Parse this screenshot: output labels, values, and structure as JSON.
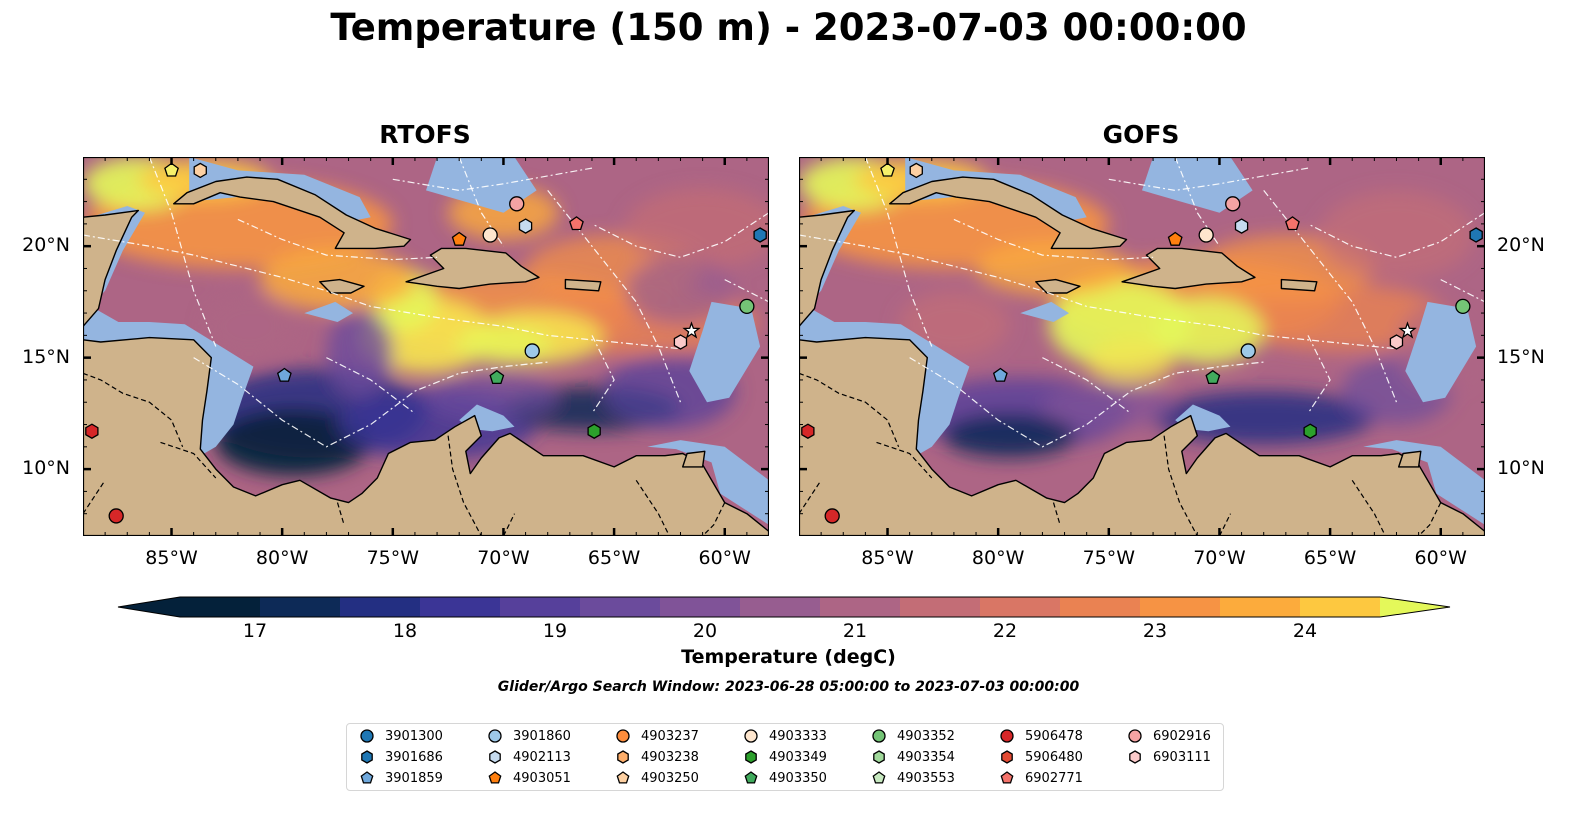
{
  "title": "Temperature (150 m) - 2023-07-03 00:00:00",
  "panels": [
    {
      "title": "RTOFS",
      "name": "rtofs"
    },
    {
      "title": "GOFS",
      "name": "gofs"
    }
  ],
  "map": {
    "lon_range": [
      -89.0,
      -58.0
    ],
    "lat_range": [
      7.0,
      24.0
    ],
    "lon_ticks": [
      {
        "value": -85,
        "label": "85°W"
      },
      {
        "value": -80,
        "label": "80°W"
      },
      {
        "value": -75,
        "label": "75°W"
      },
      {
        "value": -70,
        "label": "70°W"
      },
      {
        "value": -65,
        "label": "65°W"
      },
      {
        "value": -60,
        "label": "60°W"
      }
    ],
    "lat_ticks": [
      {
        "value": 20,
        "label": "20°N"
      },
      {
        "value": 15,
        "label": "15°N"
      },
      {
        "value": 10,
        "label": "10°N"
      }
    ],
    "colors": {
      "land": "#cfb38b",
      "shelf": "#94b5e0",
      "deep_cold": "#0a2a3d",
      "coast": "#000000"
    }
  },
  "colorbar": {
    "label": "Temperature (degC)",
    "range": [
      16.5,
      24.5
    ],
    "step": 0.5,
    "ticks": [
      {
        "value": 17,
        "label": "17"
      },
      {
        "value": 18,
        "label": "18"
      },
      {
        "value": 19,
        "label": "19"
      },
      {
        "value": 20,
        "label": "20"
      },
      {
        "value": 21,
        "label": "21"
      },
      {
        "value": 22,
        "label": "22"
      },
      {
        "value": 23,
        "label": "23"
      },
      {
        "value": 24,
        "label": "24"
      }
    ],
    "colors": [
      "#04213a",
      "#0d2a57",
      "#232f82",
      "#3b3596",
      "#56409b",
      "#6b4b9c",
      "#805398",
      "#975d90",
      "#ad6585",
      "#c36d76",
      "#d97665",
      "#ea8252",
      "#f69344",
      "#fcab3c",
      "#fdc840",
      "#f6e650",
      "#e4f85a"
    ]
  },
  "search_window": "Glider/Argo Search Window: 2023-06-28 05:00:00 to 2023-07-03 00:00:00",
  "legend": [
    {
      "label": "3901300",
      "shape": "circle",
      "color": "#1f77b4"
    },
    {
      "label": "3901686",
      "shape": "hexagon",
      "color": "#1f77b4"
    },
    {
      "label": "3901859",
      "shape": "pentagon",
      "color": "#6fa8dc"
    },
    {
      "label": "3901860",
      "shape": "circle",
      "color": "#9ec9e8"
    },
    {
      "label": "4902113",
      "shape": "hexagon",
      "color": "#c6dbef"
    },
    {
      "label": "4903051",
      "shape": "pentagon",
      "color": "#ff7f0e"
    },
    {
      "label": "4903237",
      "shape": "circle",
      "color": "#fd8d3c"
    },
    {
      "label": "4903238",
      "shape": "hexagon",
      "color": "#fdae6b"
    },
    {
      "label": "4903250",
      "shape": "pentagon",
      "color": "#fdd0a2"
    },
    {
      "label": "4903333",
      "shape": "circle",
      "color": "#fee6ce"
    },
    {
      "label": "4903349",
      "shape": "hexagon",
      "color": "#2ca02c"
    },
    {
      "label": "4903350",
      "shape": "pentagon",
      "color": "#41ab5d"
    },
    {
      "label": "4903352",
      "shape": "circle",
      "color": "#74c476"
    },
    {
      "label": "4903354",
      "shape": "hexagon",
      "color": "#a1d99b"
    },
    {
      "label": "4903553",
      "shape": "pentagon",
      "color": "#c7e9c0"
    },
    {
      "label": "5906478",
      "shape": "circle",
      "color": "#d62728"
    },
    {
      "label": "5906480",
      "shape": "hexagon",
      "color": "#e34a33"
    },
    {
      "label": "6902771",
      "shape": "pentagon",
      "color": "#f4736b"
    },
    {
      "label": "6902916",
      "shape": "circle",
      "color": "#f4a3a3"
    },
    {
      "label": "6903111",
      "shape": "hexagon",
      "color": "#fbcaca"
    }
  ],
  "floats": [
    {
      "lon": -85.0,
      "lat": 23.4,
      "shape": "pentagon",
      "color": "#f6f06a"
    },
    {
      "lon": -83.7,
      "lat": 23.4,
      "shape": "hexagon",
      "color": "#fdd0a2"
    },
    {
      "lon": -69.4,
      "lat": 21.9,
      "shape": "circle",
      "color": "#f4a3a3"
    },
    {
      "lon": -69.0,
      "lat": 20.9,
      "shape": "hexagon",
      "color": "#c6dbef"
    },
    {
      "lon": -66.7,
      "lat": 21.0,
      "shape": "pentagon",
      "color": "#f4736b"
    },
    {
      "lon": -70.6,
      "lat": 20.5,
      "shape": "circle",
      "color": "#fee6ce"
    },
    {
      "lon": -72.0,
      "lat": 20.3,
      "shape": "pentagon",
      "color": "#ff7f0e"
    },
    {
      "lon": -58.4,
      "lat": 20.5,
      "shape": "hexagon",
      "color": "#1f77b4"
    },
    {
      "lon": -59.0,
      "lat": 17.3,
      "shape": "circle",
      "color": "#74c476"
    },
    {
      "lon": -61.5,
      "lat": 16.2,
      "shape": "star",
      "color": "#ffffff"
    },
    {
      "lon": -62.0,
      "lat": 15.7,
      "shape": "hexagon",
      "color": "#fbcaca"
    },
    {
      "lon": -68.7,
      "lat": 15.3,
      "shape": "circle",
      "color": "#9ec9e8"
    },
    {
      "lon": -70.3,
      "lat": 14.1,
      "shape": "pentagon",
      "color": "#41ab5d"
    },
    {
      "lon": -79.9,
      "lat": 14.2,
      "shape": "pentagon",
      "color": "#6fa8dc"
    },
    {
      "lon": -65.9,
      "lat": 11.7,
      "shape": "hexagon",
      "color": "#2ca02c"
    },
    {
      "lon": -88.6,
      "lat": 11.7,
      "shape": "hexagon",
      "color": "#d62728"
    },
    {
      "lon": -87.5,
      "lat": 7.9,
      "shape": "circle",
      "color": "#d62728"
    }
  ]
}
